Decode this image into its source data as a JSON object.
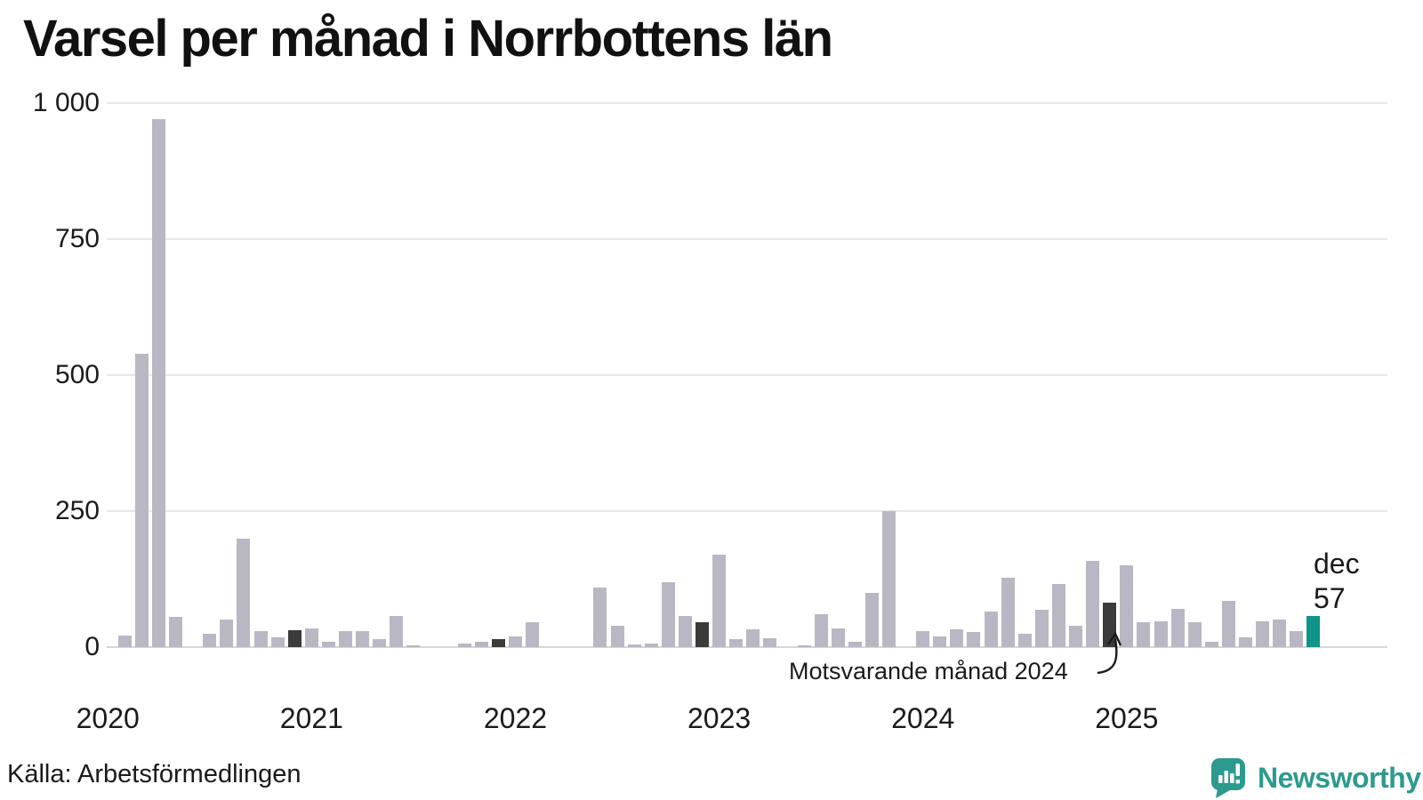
{
  "title": "Varsel per månad i Norrbottens län",
  "source": "Källa: Arbetsförmedlingen",
  "annotation": {
    "text": "Motsvarande månad 2024"
  },
  "current_label": {
    "month": "dec",
    "value": "57"
  },
  "logo": {
    "text": "Newsworthy"
  },
  "colors": {
    "bar_default": "#bab7c4",
    "bar_highlight_dark": "#3b3b3b",
    "bar_current_teal": "#0e9489",
    "logo_teal": "#2c9a8e",
    "grid": "#e8e8ec",
    "axis": "#d5d5da",
    "text": "#1a1a1a"
  },
  "chart_data": {
    "type": "bar",
    "title": "Varsel per månad i Norrbottens län",
    "ylabel": "",
    "xlabel": "",
    "ylim": [
      0,
      1000
    ],
    "grid": "horizontal",
    "y_ticks": [
      0,
      250,
      500,
      750,
      1000
    ],
    "y_tick_labels": [
      "0",
      "250",
      "500",
      "750",
      "1 000"
    ],
    "x_tick_labels": [
      "2020",
      "2021",
      "2022",
      "2023",
      "2024",
      "2025"
    ],
    "month_keys": [
      "jan",
      "feb",
      "mar",
      "apr",
      "maj",
      "jun",
      "jul",
      "aug",
      "sep",
      "okt",
      "nov",
      "dec"
    ],
    "series": [
      {
        "year": 2020,
        "values": [
          0,
          22,
          540,
          970,
          55,
          0,
          25,
          50,
          200,
          30,
          18,
          31
        ]
      },
      {
        "year": 2021,
        "values": [
          35,
          10,
          30,
          30,
          14,
          58,
          3,
          0,
          0,
          6,
          10,
          15
        ]
      },
      {
        "year": 2022,
        "values": [
          20,
          45,
          0,
          0,
          0,
          110,
          40,
          5,
          7,
          120,
          58,
          46
        ]
      },
      {
        "year": 2023,
        "values": [
          170,
          15,
          33,
          16,
          0,
          4,
          60,
          35,
          10,
          100,
          250,
          0
        ]
      },
      {
        "year": 2024,
        "values": [
          30,
          20,
          33,
          28,
          65,
          127,
          25,
          68,
          116,
          40,
          158,
          81
        ]
      },
      {
        "year": 2025,
        "values": [
          150,
          45,
          48,
          70,
          45,
          10,
          85,
          18,
          48,
          50,
          30,
          57
        ]
      }
    ],
    "highlight_dark_indices": [
      11,
      23,
      35,
      59
    ],
    "highlight_dark_meaning": "december of previous years (Motsvarande månad 2024 points at dec 2024)",
    "current_index": 71,
    "current": {
      "month": "dec",
      "year": 2025,
      "value": 57
    },
    "legend": "none"
  }
}
